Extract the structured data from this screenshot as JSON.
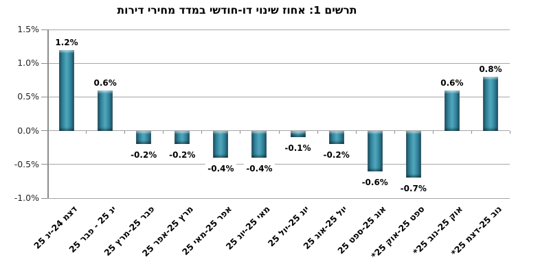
{
  "chart_data": {
    "type": "bar",
    "title": "תרשים 1: אחוז שינוי דו-חודשי במדד מחירי דירות",
    "categories": [
      "דצמ 24-ינ 25",
      "ינ 25 - פבר 25",
      "פבר 25-מרץ 25",
      "מרץ 25-אפר 25",
      "אפר 25-מאי 25",
      "מאי 25-יונ 25",
      "יונ 25-יול 25",
      "יול 25-אוג 25",
      "אוג 25-ספט 25",
      "ספט 25-אוק 25*",
      "אוק 25-נוב 25*",
      "נוב 25-דצמ 25*"
    ],
    "values": [
      1.2,
      0.6,
      -0.2,
      -0.2,
      -0.4,
      -0.4,
      -0.1,
      -0.2,
      -0.6,
      -0.7,
      0.6,
      0.8
    ],
    "data_labels": [
      "1.2%",
      "0.6%",
      "-0.2%",
      "-0.2%",
      "-0.4%",
      "-0.4%",
      "-0.1%",
      "-0.2%",
      "-0.6%",
      "-0.7%",
      "0.6%",
      "0.8%"
    ],
    "xlabel": "",
    "ylabel": "",
    "ylim": [
      -1.0,
      1.5
    ],
    "y_ticks": [
      {
        "v": 1.5,
        "label": "1.5%"
      },
      {
        "v": 1.0,
        "label": "1.0%"
      },
      {
        "v": 0.5,
        "label": "0.5%"
      },
      {
        "v": 0.0,
        "label": "0.0%"
      },
      {
        "v": -0.5,
        "label": "-0.5%"
      },
      {
        "v": -1.0,
        "label": "-1.0%"
      }
    ],
    "grid": true,
    "legend": "none",
    "direction": "rtl",
    "colors": {
      "bar_edge": "#174A5C",
      "bar_body": "#2F7F97",
      "bar_highlight": "#4DA3B8",
      "gridline": "#A6A6A6",
      "axis": "#8A8A8A",
      "title_text": "#000000",
      "tick_text": "#262626",
      "background": "#FFFFFF"
    }
  }
}
